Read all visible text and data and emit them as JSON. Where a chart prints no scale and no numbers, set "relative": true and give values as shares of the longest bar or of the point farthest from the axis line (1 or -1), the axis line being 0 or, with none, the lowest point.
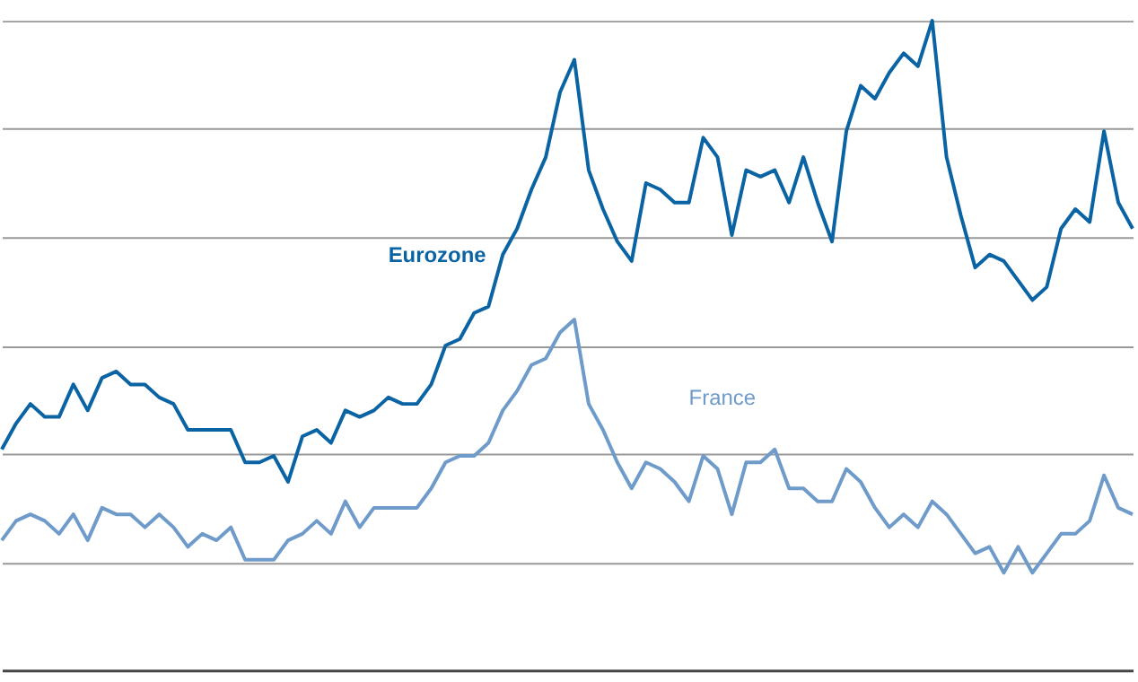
{
  "chart_data": {
    "type": "line",
    "relative": true,
    "grid": "y",
    "legend": false,
    "categories": [
      null,
      null,
      null,
      null,
      null,
      null,
      null,
      null,
      null,
      null,
      null,
      null,
      null,
      null,
      null,
      null,
      null,
      null,
      null,
      null,
      null,
      null,
      null,
      null,
      null,
      null,
      null,
      null,
      null,
      null,
      null,
      null,
      null,
      null,
      null,
      null,
      null,
      null,
      null,
      null,
      null,
      null,
      null,
      null,
      null,
      null,
      null,
      null,
      null,
      null,
      null,
      null,
      null,
      null,
      null,
      null,
      null,
      null,
      null,
      null,
      null,
      null,
      null,
      null,
      null,
      null,
      null,
      null,
      null,
      null,
      null,
      null,
      null,
      null,
      null,
      null,
      null,
      null,
      null,
      null
    ],
    "series": [
      {
        "name": "Eurozone",
        "color": "#0a64a4",
        "values": [
          0.34,
          0.38,
          0.41,
          0.39,
          0.39,
          0.44,
          0.4,
          0.45,
          0.46,
          0.44,
          0.44,
          0.42,
          0.41,
          0.37,
          0.37,
          0.37,
          0.37,
          0.32,
          0.32,
          0.33,
          0.29,
          0.36,
          0.37,
          0.35,
          0.4,
          0.39,
          0.4,
          0.42,
          0.41,
          0.41,
          0.44,
          0.5,
          0.51,
          0.55,
          0.56,
          0.64,
          0.68,
          0.74,
          0.79,
          0.89,
          0.94,
          0.77,
          0.71,
          0.66,
          0.63,
          0.75,
          0.74,
          0.72,
          0.72,
          0.82,
          0.79,
          0.67,
          0.77,
          0.76,
          0.77,
          0.72,
          0.79,
          0.72,
          0.66,
          0.83,
          0.9,
          0.88,
          0.92,
          0.95,
          0.93,
          1.0,
          0.79,
          0.7,
          0.62,
          0.64,
          0.63,
          0.6,
          0.57,
          0.59,
          0.68,
          0.71,
          0.69,
          0.83,
          0.72,
          0.68
        ]
      },
      {
        "name": "France",
        "color": "#6f9bca",
        "values": [
          0.2,
          0.23,
          0.24,
          0.23,
          0.21,
          0.24,
          0.2,
          0.25,
          0.24,
          0.24,
          0.22,
          0.24,
          0.22,
          0.19,
          0.21,
          0.2,
          0.22,
          0.17,
          0.17,
          0.17,
          0.2,
          0.21,
          0.23,
          0.21,
          0.26,
          0.22,
          0.25,
          0.25,
          0.25,
          0.25,
          0.28,
          0.32,
          0.33,
          0.33,
          0.35,
          0.4,
          0.43,
          0.47,
          0.48,
          0.52,
          0.54,
          0.41,
          0.37,
          0.32,
          0.28,
          0.32,
          0.31,
          0.29,
          0.26,
          0.33,
          0.31,
          0.24,
          0.32,
          0.32,
          0.34,
          0.28,
          0.28,
          0.26,
          0.26,
          0.31,
          0.29,
          0.25,
          0.22,
          0.24,
          0.22,
          0.26,
          0.24,
          0.21,
          0.18,
          0.19,
          0.15,
          0.19,
          0.15,
          0.18,
          0.21,
          0.21,
          0.23,
          0.3,
          0.25,
          0.24
        ]
      }
    ]
  }
}
